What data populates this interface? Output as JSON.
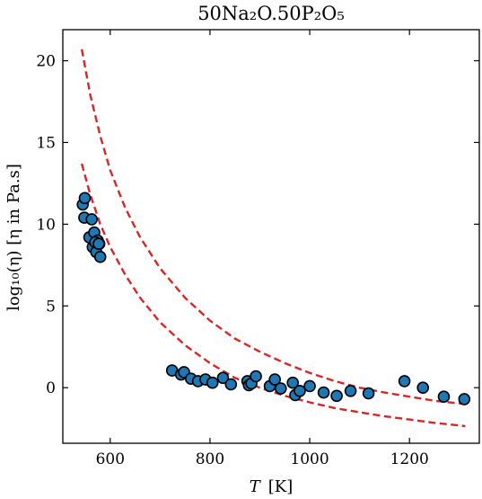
{
  "chart_data": {
    "type": "scatter",
    "title": "50Na₂O.50P₂O₅",
    "xlabel_var": "T",
    "xlabel_unit": "[K]",
    "ylabel": "log₁₀(η)  [η in Pa.s]",
    "xlim": [
      505,
      1340
    ],
    "ylim": [
      -3.4,
      21.9
    ],
    "xticks": [
      600,
      800,
      1000,
      1200
    ],
    "yticks": [
      0,
      5,
      10,
      15,
      20
    ],
    "grid": false,
    "legend": "none",
    "colors": {
      "points_fill": "#1f77b4",
      "points_edge": "#000000",
      "fit_lines": "#d62728"
    },
    "series": [
      {
        "type": "scatter",
        "x": [
          545,
          549,
          548,
          558,
          563,
          565,
          568,
          572,
          575,
          578,
          580,
          570,
          577,
          724,
          742,
          748,
          762,
          776,
          791,
          805,
          826,
          842,
          875,
          878,
          883,
          892,
          920,
          930,
          942,
          966,
          971,
          980,
          1000,
          1028,
          1054,
          1082,
          1118,
          1190,
          1227,
          1269,
          1310
        ],
        "y": [
          11.2,
          11.6,
          10.4,
          9.2,
          10.3,
          8.6,
          9.5,
          8.3,
          9.0,
          8.8,
          8.0,
          8.9,
          8.8,
          1.05,
          0.8,
          0.95,
          0.55,
          0.4,
          0.5,
          0.3,
          0.6,
          0.2,
          0.4,
          0.15,
          0.25,
          0.7,
          0.1,
          0.5,
          -0.05,
          0.3,
          -0.45,
          -0.2,
          0.1,
          -0.3,
          -0.5,
          -0.2,
          -0.35,
          0.4,
          0.0,
          -0.55,
          -0.7
        ]
      },
      {
        "type": "line",
        "style": "dashed",
        "x": [
          543,
          560,
          580,
          600,
          630,
          660,
          700,
          750,
          800,
          850,
          900,
          950,
          1000,
          1050,
          1100,
          1150,
          1200,
          1250,
          1312
        ],
        "y": [
          20.7,
          17.9,
          15.4,
          13.3,
          11.0,
          9.2,
          7.3,
          5.5,
          4.1,
          3.0,
          2.2,
          1.5,
          0.9,
          0.4,
          0.0,
          -0.3,
          -0.55,
          -0.8,
          -1.0
        ]
      },
      {
        "type": "line",
        "style": "dashed",
        "x": [
          543,
          560,
          580,
          600,
          630,
          660,
          700,
          750,
          800,
          850,
          900,
          950,
          1000,
          1050,
          1100,
          1150,
          1200,
          1250,
          1312
        ],
        "y": [
          13.7,
          11.8,
          10.0,
          8.6,
          6.9,
          5.5,
          4.0,
          2.6,
          1.5,
          0.6,
          0.0,
          -0.5,
          -0.9,
          -1.25,
          -1.5,
          -1.75,
          -1.95,
          -2.15,
          -2.35
        ]
      }
    ]
  }
}
